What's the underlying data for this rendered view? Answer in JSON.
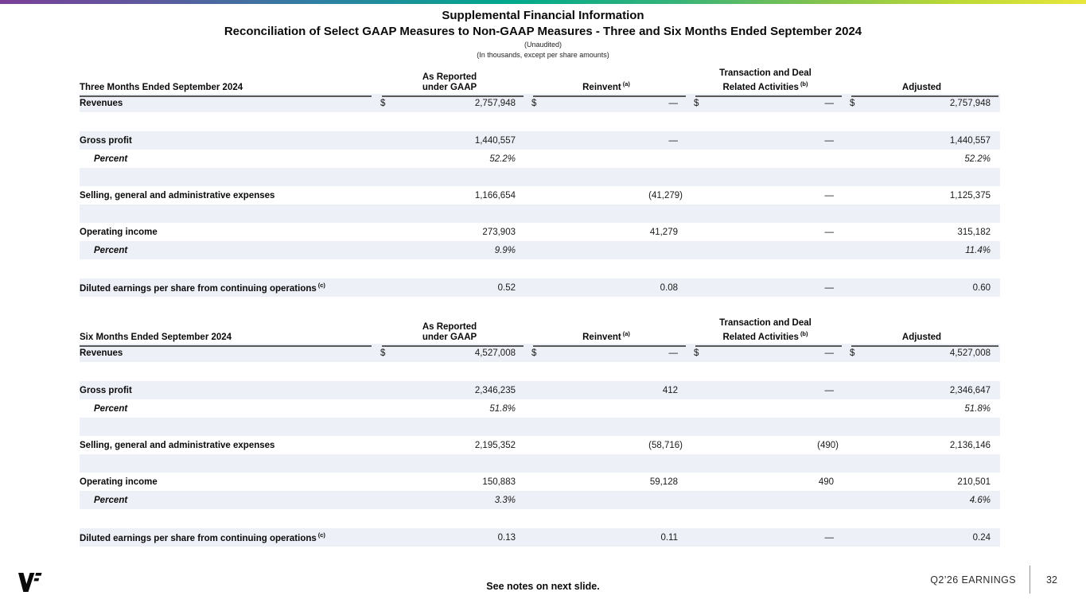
{
  "slide": {
    "title_line1": "Supplemental Financial Information",
    "title_line2": "Reconciliation of Select GAAP Measures to Non-GAAP Measures - Three and Six Months Ended September 2024",
    "subtitle_line1": "(Unaudited)",
    "subtitle_line2": "(In thousands, except per share amounts)"
  },
  "currency_symbol": "$",
  "columns": {
    "as_reported": {
      "line1": "As Reported",
      "line2": "under GAAP"
    },
    "reinvent": {
      "label": "Reinvent",
      "sup": "(a)"
    },
    "transaction": {
      "line1": "Transaction and Deal",
      "line2": "Related Activities",
      "sup": "(b)"
    },
    "adjusted": {
      "label": "Adjusted"
    }
  },
  "tables": [
    {
      "period_label": "Three Months Ended September 2024",
      "rows": [
        {
          "type": "data",
          "bg": "blue",
          "dollar": true,
          "label": "Revenues",
          "v1": "2,757,948",
          "v2": "—",
          "v3": "—",
          "v4": "2,757,948"
        },
        {
          "type": "spacer",
          "bg": "white"
        },
        {
          "type": "data",
          "bg": "blue",
          "label": "Gross profit",
          "v1": "1,440,557",
          "v2": "—",
          "v3": "—",
          "v4": "1,440,557"
        },
        {
          "type": "percent",
          "bg": "white",
          "label": "Percent",
          "v1": "52.2%",
          "v2": "",
          "v3": "",
          "v4": "52.2%"
        },
        {
          "type": "blank",
          "bg": "blue"
        },
        {
          "type": "data",
          "bg": "white",
          "label": "Selling, general and administrative expenses",
          "v1": "1,166,654",
          "v2": "(41,279)",
          "v3": "—",
          "v4": "1,125,375"
        },
        {
          "type": "blank",
          "bg": "blue"
        },
        {
          "type": "data",
          "bg": "white",
          "label": "Operating income",
          "v1": "273,903",
          "v2": "41,279",
          "v3": "—",
          "v4": "315,182"
        },
        {
          "type": "percent",
          "bg": "blue",
          "label": "Percent",
          "v1": "9.9%",
          "v2": "",
          "v3": "",
          "v4": "11.4%"
        },
        {
          "type": "spacer",
          "bg": "white"
        },
        {
          "type": "data",
          "bg": "blue",
          "label": "Diluted earnings per share from continuing operations",
          "sup": "(c)",
          "v1": "0.52",
          "v2": "0.08",
          "v3": "—",
          "v4": "0.60"
        }
      ]
    },
    {
      "period_label": "Six Months Ended September 2024",
      "rows": [
        {
          "type": "data",
          "bg": "blue",
          "dollar": true,
          "label": "Revenues",
          "v1": "4,527,008",
          "v2": "—",
          "v3": "—",
          "v4": "4,527,008"
        },
        {
          "type": "spacer",
          "bg": "white"
        },
        {
          "type": "data",
          "bg": "blue",
          "label": "Gross profit",
          "v1": "2,346,235",
          "v2": "412",
          "v3": "—",
          "v4": "2,346,647"
        },
        {
          "type": "percent",
          "bg": "white",
          "label": "Percent",
          "v1": "51.8%",
          "v2": "",
          "v3": "",
          "v4": "51.8%"
        },
        {
          "type": "blank",
          "bg": "blue"
        },
        {
          "type": "data",
          "bg": "white",
          "label": "Selling, general and administrative expenses",
          "v1": "2,195,352",
          "v2": "(58,716)",
          "v3": "(490)",
          "v4": "2,136,146"
        },
        {
          "type": "blank",
          "bg": "blue"
        },
        {
          "type": "data",
          "bg": "white",
          "label": "Operating income",
          "v1": "150,883",
          "v2": "59,128",
          "v3": "490",
          "v4": "210,501"
        },
        {
          "type": "percent",
          "bg": "blue",
          "label": "Percent",
          "v1": "3.3%",
          "v2": "",
          "v3": "",
          "v4": "4.6%"
        },
        {
          "type": "spacer",
          "bg": "white"
        },
        {
          "type": "data",
          "bg": "blue",
          "label": "Diluted earnings per share from continuing operations",
          "sup": "(c)",
          "v1": "0.13",
          "v2": "0.11",
          "v3": "—",
          "v4": "0.24"
        }
      ]
    }
  ],
  "footer": {
    "note": "See notes on next slide.",
    "brand": "VF",
    "earnings_label": "Q2’26 EARNINGS",
    "page_number": "32"
  },
  "colors": {
    "row_highlight": "#edf0f7",
    "rule": "#595959",
    "gradient_left": "#7b3f98",
    "gradient_mid": "#00a98c",
    "gradient_right": "#e9e63b"
  }
}
